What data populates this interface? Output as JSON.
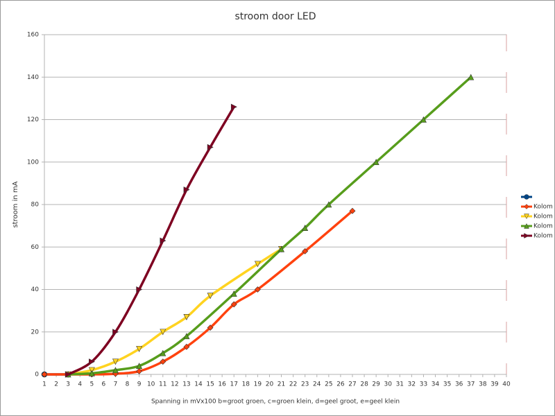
{
  "chart_data": {
    "type": "line",
    "title": "stroom door LED",
    "x_label": "Spanning in mVx100  b=groot groen, c=groen klein, d=geel groot, e=geel klein",
    "y_label": "stroom in mA",
    "xlim": [
      1,
      40
    ],
    "xticks": [
      1,
      2,
      3,
      4,
      5,
      6,
      7,
      8,
      9,
      10,
      11,
      12,
      13,
      14,
      15,
      16,
      17,
      18,
      19,
      20,
      21,
      22,
      23,
      24,
      25,
      26,
      27,
      28,
      29,
      30,
      31,
      32,
      33,
      34,
      35,
      36,
      37,
      38,
      39,
      40
    ],
    "ylim": [
      0,
      160
    ],
    "yticks": [
      0,
      20,
      40,
      60,
      80,
      100,
      120,
      140,
      160
    ],
    "grid": true,
    "legend": "right",
    "series": [
      {
        "color": "#004586",
        "marker": "circle",
        "x": [
          1,
          3
        ],
        "values": [
          0,
          0
        ]
      },
      {
        "name": "Kolom B",
        "color": "#ff420e",
        "marker": "diamond",
        "x": [
          1,
          3,
          5,
          7,
          9,
          11,
          13,
          15,
          17,
          19,
          23,
          27
        ],
        "values": [
          0,
          0,
          0,
          0.3,
          1.5,
          6,
          13,
          22,
          33,
          40,
          58,
          77
        ]
      },
      {
        "name": "Kolom C",
        "color": "#ffd320",
        "marker": "down",
        "x": [
          3,
          5,
          7,
          9,
          11,
          13,
          15,
          19,
          21
        ],
        "values": [
          0,
          2,
          6,
          12,
          20,
          27,
          37,
          52,
          59
        ]
      },
      {
        "name": "Kolom D",
        "color": "#579d1c",
        "marker": "up",
        "x": [
          3,
          5,
          7,
          9,
          11,
          13,
          17,
          21,
          23,
          25,
          29,
          33,
          37
        ],
        "values": [
          0,
          0.5,
          2,
          4,
          10,
          18,
          38,
          59,
          69,
          80,
          100,
          120,
          140
        ]
      },
      {
        "name": "Kolom E",
        "color": "#7e0021",
        "marker": "right",
        "x": [
          3,
          5,
          7,
          9,
          11,
          13,
          15,
          17
        ],
        "values": [
          0,
          6,
          20,
          40,
          63,
          87,
          107,
          126
        ]
      }
    ]
  }
}
